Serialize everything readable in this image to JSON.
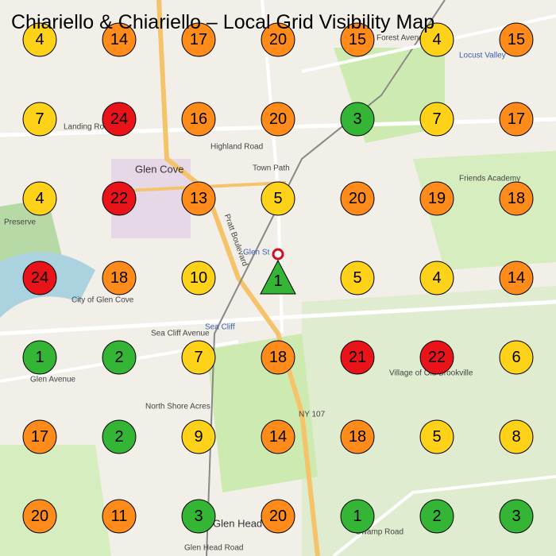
{
  "title": "Chiariello & Chiariello – Local Grid Visibility Map",
  "map_labels": [
    "Glen Cove",
    "Glen St",
    "Sea Cliff",
    "Locust Valley",
    "Highland Road",
    "Town Path",
    "Forest Avenue",
    "Landing Road",
    "Pratt Boulevard",
    "Sea Cliff Avenue",
    "Glen Avenue",
    "North Shore Acres",
    "NY 107",
    "Friends Academy",
    "Glen Head",
    "Glen Head Road",
    "Swamp Road",
    "Village of Old Brookville",
    "City of Glen Cove",
    "Preserve"
  ],
  "grid": {
    "rows": [
      [
        {
          "value": 4,
          "color": "#ffd21a"
        },
        {
          "value": 14,
          "color": "#ff8c1a"
        },
        {
          "value": 17,
          "color": "#ff8c1a"
        },
        {
          "value": 20,
          "color": "#ff8c1a"
        },
        {
          "value": 15,
          "color": "#ff8c1a"
        },
        {
          "value": 4,
          "color": "#ffd21a"
        },
        {
          "value": 15,
          "color": "#ff8c1a"
        }
      ],
      [
        {
          "value": 7,
          "color": "#ffd21a"
        },
        {
          "value": 24,
          "color": "#e8141a"
        },
        {
          "value": 16,
          "color": "#ff8c1a"
        },
        {
          "value": 20,
          "color": "#ff8c1a"
        },
        {
          "value": 3,
          "color": "#35b535"
        },
        {
          "value": 7,
          "color": "#ffd21a"
        },
        {
          "value": 17,
          "color": "#ff8c1a"
        }
      ],
      [
        {
          "value": 4,
          "color": "#ffd21a"
        },
        {
          "value": 22,
          "color": "#e8141a"
        },
        {
          "value": 13,
          "color": "#ff8c1a"
        },
        {
          "value": 5,
          "color": "#ffd21a"
        },
        {
          "value": 20,
          "color": "#ff8c1a"
        },
        {
          "value": 19,
          "color": "#ff8c1a"
        },
        {
          "value": 18,
          "color": "#ff8c1a"
        }
      ],
      [
        {
          "value": 24,
          "color": "#e8141a"
        },
        {
          "value": 18,
          "color": "#ff8c1a"
        },
        {
          "value": 10,
          "color": "#ffd21a"
        },
        {
          "value": 1,
          "color": "#35b535",
          "shape": "triangle"
        },
        {
          "value": 5,
          "color": "#ffd21a"
        },
        {
          "value": 4,
          "color": "#ffd21a"
        },
        {
          "value": 14,
          "color": "#ff8c1a"
        }
      ],
      [
        {
          "value": 1,
          "color": "#35b535"
        },
        {
          "value": 2,
          "color": "#35b535"
        },
        {
          "value": 7,
          "color": "#ffd21a"
        },
        {
          "value": 18,
          "color": "#ff8c1a"
        },
        {
          "value": 21,
          "color": "#e8141a"
        },
        {
          "value": 22,
          "color": "#e8141a"
        },
        {
          "value": 6,
          "color": "#ffd21a"
        }
      ],
      [
        {
          "value": 17,
          "color": "#ff8c1a"
        },
        {
          "value": 2,
          "color": "#35b535"
        },
        {
          "value": 9,
          "color": "#ffd21a"
        },
        {
          "value": 14,
          "color": "#ff8c1a"
        },
        {
          "value": 18,
          "color": "#ff8c1a"
        },
        {
          "value": 5,
          "color": "#ffd21a"
        },
        {
          "value": 8,
          "color": "#ffd21a"
        }
      ],
      [
        {
          "value": 20,
          "color": "#ff8c1a"
        },
        {
          "value": 11,
          "color": "#ff8c1a"
        },
        {
          "value": 3,
          "color": "#35b535"
        },
        {
          "value": 20,
          "color": "#ff8c1a"
        },
        {
          "value": 1,
          "color": "#35b535"
        },
        {
          "value": 2,
          "color": "#35b535"
        },
        {
          "value": 3,
          "color": "#35b535"
        }
      ]
    ]
  }
}
